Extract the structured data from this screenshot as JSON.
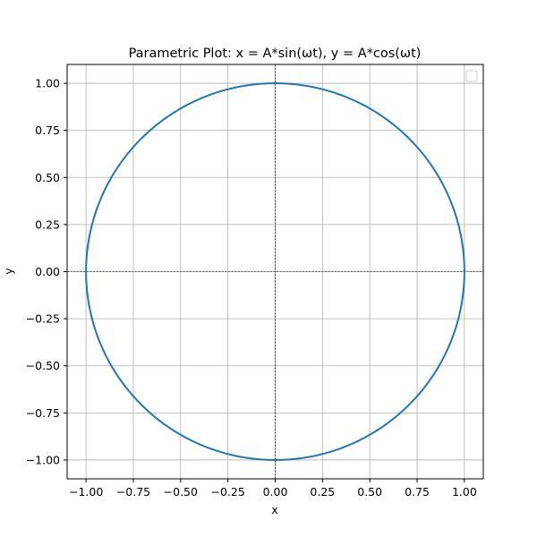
{
  "chart_data": {
    "type": "line",
    "title": "Parametric Plot: x = A*sin(ωt), y = A*cos(ωt)",
    "xlabel": "x",
    "ylabel": "y",
    "xlim": [
      -1.1,
      1.1
    ],
    "ylim": [
      -1.1,
      1.1
    ],
    "xticks": [
      -1.0,
      -0.75,
      -0.5,
      -0.25,
      0.0,
      0.25,
      0.5,
      0.75,
      1.0
    ],
    "yticks": [
      -1.0,
      -0.75,
      -0.5,
      -0.25,
      0.0,
      0.25,
      0.5,
      0.75,
      1.0
    ],
    "xtick_labels": [
      "−1.00",
      "−0.75",
      "−0.50",
      "−0.25",
      "0.00",
      "0.25",
      "0.50",
      "0.75",
      "1.00"
    ],
    "ytick_labels": [
      "−1.00",
      "−0.75",
      "−0.50",
      "−0.25",
      "0.00",
      "0.25",
      "0.50",
      "0.75",
      "1.00"
    ],
    "grid": true,
    "reference_lines": {
      "x": 0,
      "y": 0,
      "style": "dashed",
      "color": "#000000"
    },
    "legend": {
      "placement": "top-right",
      "entries": []
    },
    "series": [
      {
        "color": "#1f77b4",
        "parametric": {
          "x": "A*sin(ωt)",
          "y": "A*cos(ωt)",
          "A": 1,
          "t_range_fraction_of_period": [
            0,
            1
          ]
        }
      }
    ]
  }
}
